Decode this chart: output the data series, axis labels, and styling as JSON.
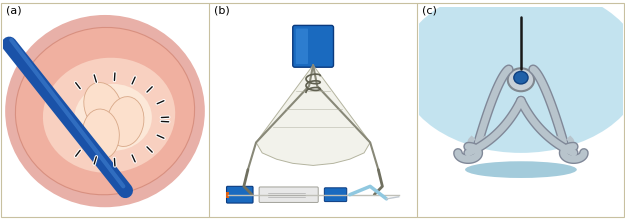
{
  "figure_width": 6.25,
  "figure_height": 2.2,
  "dpi": 100,
  "panel_labels": [
    "(a)",
    "(b)",
    "(c)"
  ],
  "border_color": "#c8c0a0",
  "border_lw": 0.8,
  "bg_color": "#ffffff",
  "panel_a_bg": "#f8f0ee",
  "panel_b_bg": "#f8f8f8",
  "panel_c_bg": "#6ab4cc"
}
